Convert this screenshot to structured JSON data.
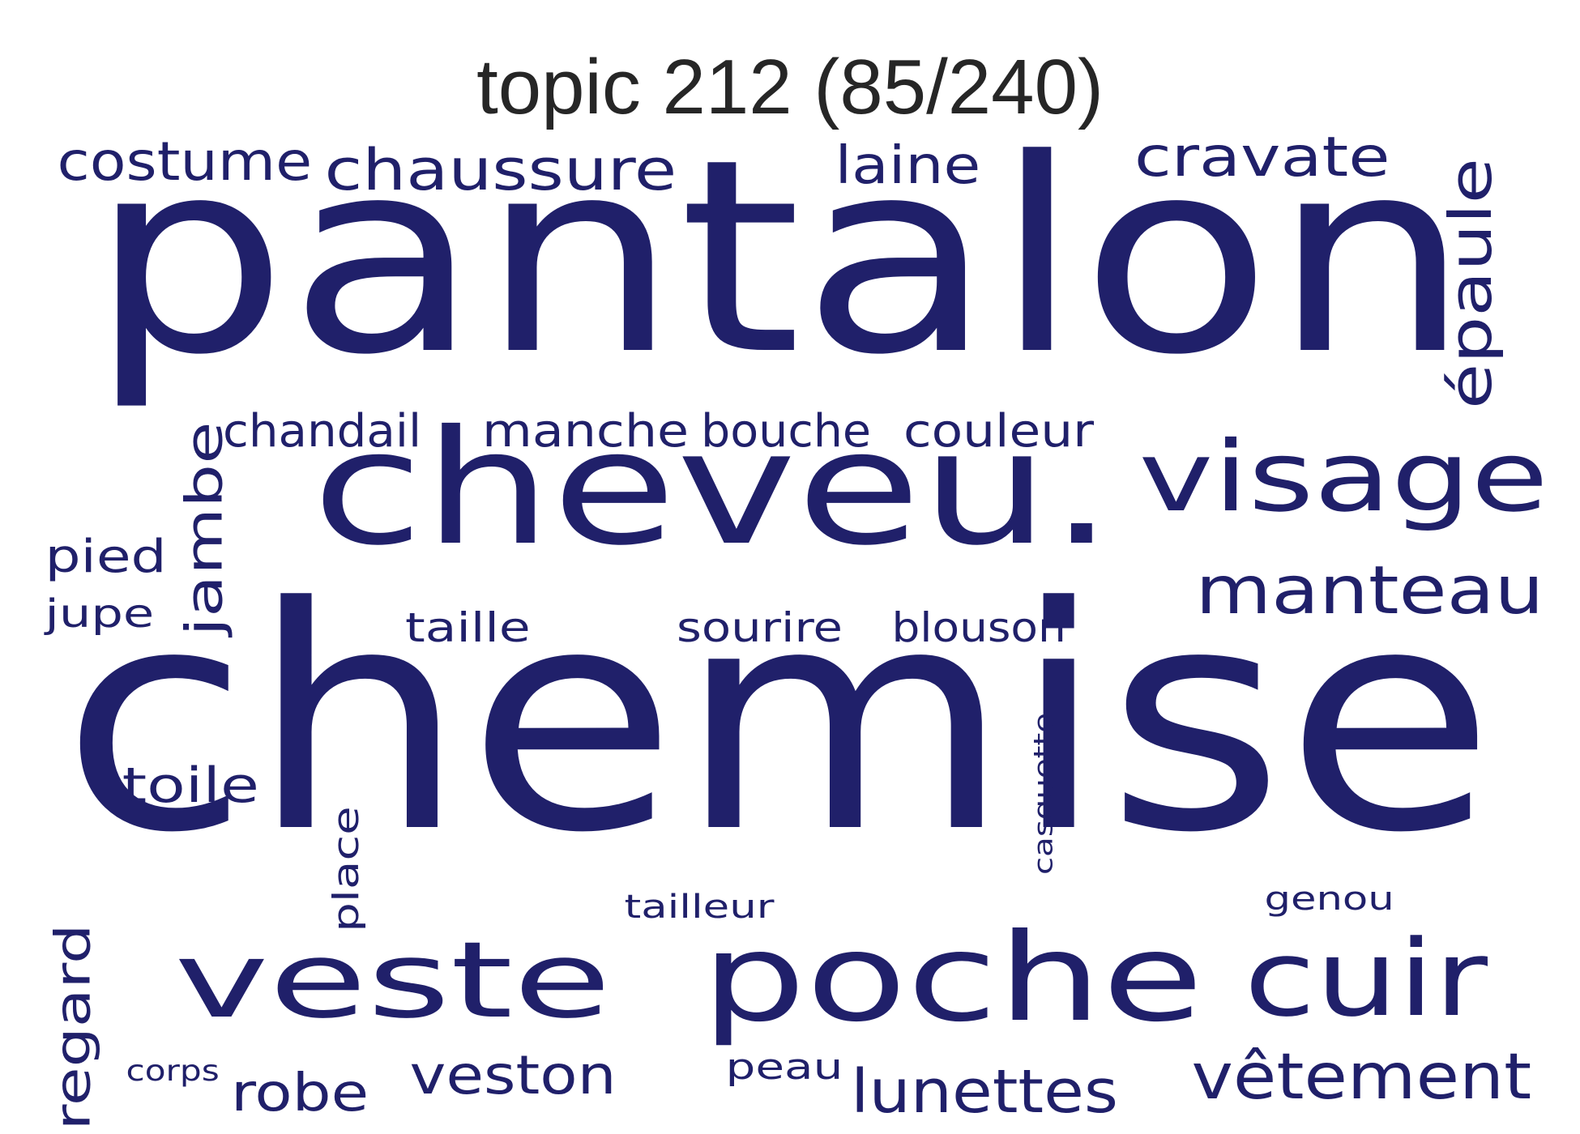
{
  "title": "topic 212 (85/240)",
  "word_color": "#20206a",
  "words": [
    {
      "text": "chemise",
      "rotated": false
    },
    {
      "text": "pantalon",
      "rotated": false
    },
    {
      "text": "cheveu.",
      "rotated": false
    },
    {
      "text": "poche",
      "rotated": false
    },
    {
      "text": "veste",
      "rotated": false
    },
    {
      "text": "cuir",
      "rotated": false
    },
    {
      "text": "visage",
      "rotated": false
    },
    {
      "text": "manteau",
      "rotated": false
    },
    {
      "text": "vêtement",
      "rotated": false
    },
    {
      "text": "costume",
      "rotated": false
    },
    {
      "text": "chaussure",
      "rotated": false
    },
    {
      "text": "laine",
      "rotated": false
    },
    {
      "text": "cravate",
      "rotated": false
    },
    {
      "text": "épaule",
      "rotated": true
    },
    {
      "text": "lunettes",
      "rotated": false
    },
    {
      "text": "jambe",
      "rotated": true
    },
    {
      "text": "chandail",
      "rotated": false
    },
    {
      "text": "manche",
      "rotated": false
    },
    {
      "text": "bouche",
      "rotated": false
    },
    {
      "text": "couleur",
      "rotated": false
    },
    {
      "text": "veston",
      "rotated": false
    },
    {
      "text": "robe",
      "rotated": false
    },
    {
      "text": "regard",
      "rotated": true
    },
    {
      "text": "toile",
      "rotated": false
    },
    {
      "text": "pied",
      "rotated": false
    },
    {
      "text": "jupe",
      "rotated": false
    },
    {
      "text": "taille",
      "rotated": false
    },
    {
      "text": "sourire",
      "rotated": false
    },
    {
      "text": "blouson",
      "rotated": false
    },
    {
      "text": "place",
      "rotated": true
    },
    {
      "text": "casquette",
      "rotated": true
    },
    {
      "text": "tailleur",
      "rotated": false
    },
    {
      "text": "genou",
      "rotated": false
    },
    {
      "text": "peau",
      "rotated": false
    },
    {
      "text": "corps",
      "rotated": false
    }
  ]
}
